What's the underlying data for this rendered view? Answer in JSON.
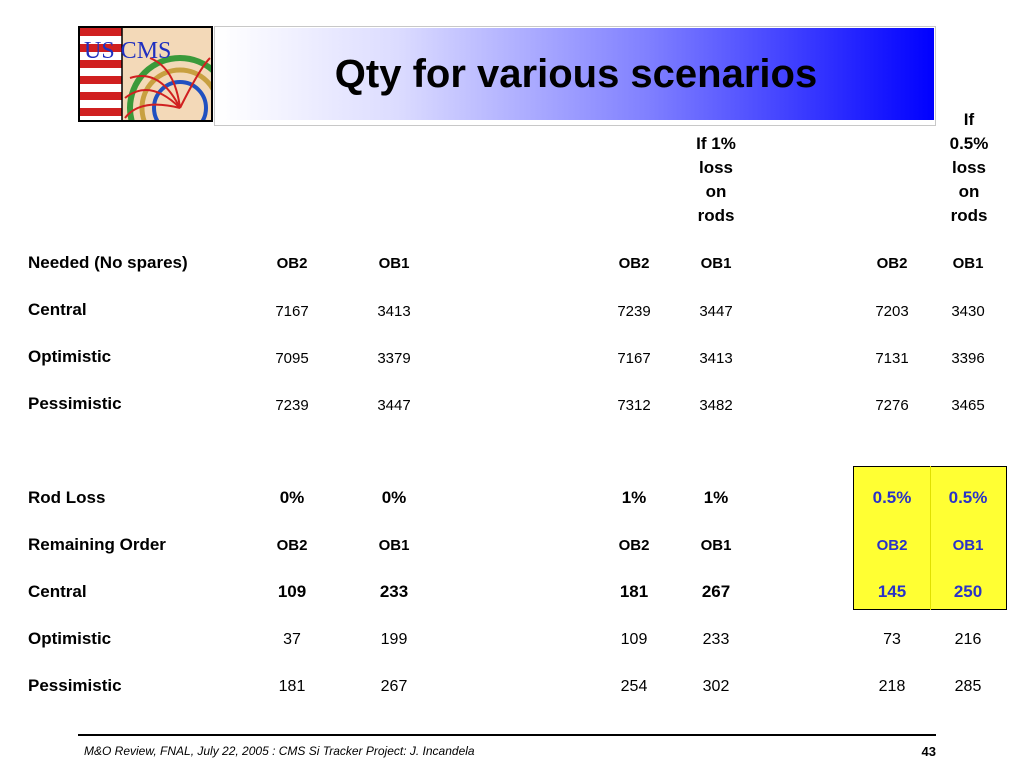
{
  "logo_text": "US CMS",
  "title": "Qty for various scenarios",
  "col_headers": {
    "h1": [
      "If 1%",
      "loss",
      "on",
      "rods"
    ],
    "h2": [
      "If",
      "0.5%",
      "loss",
      "on",
      "rods"
    ]
  },
  "table1": {
    "header": {
      "label": "Needed (No spares)",
      "cells": [
        "OB2",
        "OB1",
        "OB2",
        "OB1",
        "OB2",
        "OB1"
      ]
    },
    "rows": [
      {
        "label": "Central",
        "cells": [
          "7167",
          "3413",
          "7239",
          "3447",
          "7203",
          "3430"
        ]
      },
      {
        "label": "Optimistic",
        "cells": [
          "7095",
          "3379",
          "7167",
          "3413",
          "7131",
          "3396"
        ]
      },
      {
        "label": "Pessimistic",
        "cells": [
          "7239",
          "3447",
          "7312",
          "3482",
          "7276",
          "3465"
        ]
      }
    ]
  },
  "table2": {
    "rodloss": {
      "label": "Rod Loss",
      "cells": [
        "0%",
        "0%",
        "1%",
        "1%",
        "0.5%",
        "0.5%"
      ]
    },
    "header": {
      "label": "Remaining Order",
      "cells": [
        "OB2",
        "OB1",
        "OB2",
        "OB1",
        "OB2",
        "OB1"
      ]
    },
    "rows": [
      {
        "label": "Central",
        "cells": [
          "109",
          "233",
          "181",
          "267",
          "145",
          "250"
        ]
      },
      {
        "label": "Optimistic",
        "cells": [
          "37",
          "199",
          "109",
          "233",
          "73",
          "216"
        ]
      },
      {
        "label": "Pessimistic",
        "cells": [
          "181",
          "267",
          "254",
          "302",
          "218",
          "285"
        ]
      }
    ]
  },
  "footer": {
    "text": "M&O Review, FNAL, July 22, 2005 : CMS Si Tracker Project: J. Incandela",
    "page": "43"
  }
}
